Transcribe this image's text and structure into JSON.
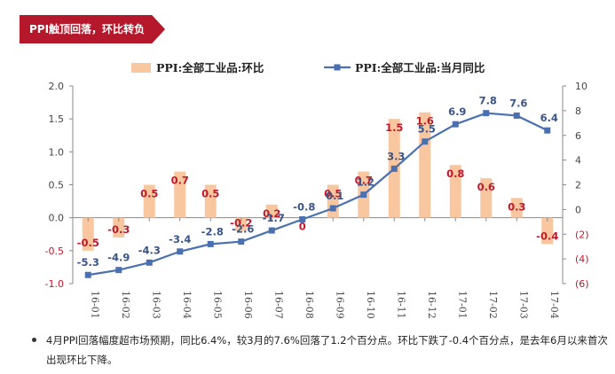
{
  "banner": {
    "title": "PPI触顶回落，环比转负"
  },
  "chart_data": {
    "type": "bar+line",
    "categories": [
      "16-01",
      "16-02",
      "16-03",
      "16-04",
      "16-05",
      "16-06",
      "16-07",
      "16-08",
      "16-09",
      "16-10",
      "16-11",
      "16-12",
      "17-01",
      "17-02",
      "17-03",
      "17-04"
    ],
    "series": [
      {
        "name": "PPI:全部工业品:环比",
        "type": "bar",
        "axis": "left",
        "color": "#f8c79f",
        "label_color": "#c0182b",
        "values": [
          -0.5,
          -0.3,
          0.5,
          0.7,
          0.5,
          -0.2,
          0.2,
          0.0,
          0.5,
          0.7,
          1.5,
          1.6,
          0.8,
          0.6,
          0.3,
          -0.4
        ],
        "labels": [
          "-0.5",
          "-0.3",
          "0.5",
          "0.7",
          "0.5",
          "-0.2",
          "0.2",
          "0",
          "0.5",
          "0.7",
          "1.5",
          "1.6",
          "0.8",
          "0.6",
          "0.3",
          "-0.4"
        ]
      },
      {
        "name": "PPI:全部工业品:当月同比",
        "type": "line",
        "axis": "right",
        "color": "#4a70b0",
        "label_color": "#3a5585",
        "values": [
          -5.3,
          -4.9,
          -4.3,
          -3.4,
          -2.8,
          -2.6,
          -1.7,
          -0.8,
          0.1,
          1.2,
          3.3,
          5.5,
          6.9,
          7.8,
          7.6,
          6.4
        ],
        "labels": [
          "-5.3",
          "-4.9",
          "-4.3",
          "-3.4",
          "-2.8",
          "-2.6",
          "-1.7",
          "-0.8",
          "0.1",
          "1.2",
          "3.3",
          "5.5",
          "6.9",
          "7.8",
          "7.6",
          "6.4"
        ]
      }
    ],
    "left_axis": {
      "min": -1.0,
      "max": 2.0,
      "ticks": [
        "-1.0",
        "-0.5",
        "0.0",
        "0.5",
        "1.0",
        "1.5",
        "2.0"
      ],
      "tick_values": [
        -1.0,
        -0.5,
        0.0,
        0.5,
        1.0,
        1.5,
        2.0
      ]
    },
    "right_axis": {
      "min": -6,
      "max": 10,
      "ticks": [
        "(6)",
        "(4)",
        "(2)",
        "0",
        "2",
        "4",
        "6",
        "8",
        "10"
      ],
      "tick_values": [
        -6,
        -4,
        -2,
        0,
        2,
        4,
        6,
        8,
        10
      ]
    },
    "legend_position": "top"
  },
  "note": {
    "text": "4月PPI回落幅度超市场预期，同比6.4%，较3月的7.6%回落了1.2个百分点。环比下跌了-0.4个百分点，是去年6月以来首次出现环比下降。"
  }
}
